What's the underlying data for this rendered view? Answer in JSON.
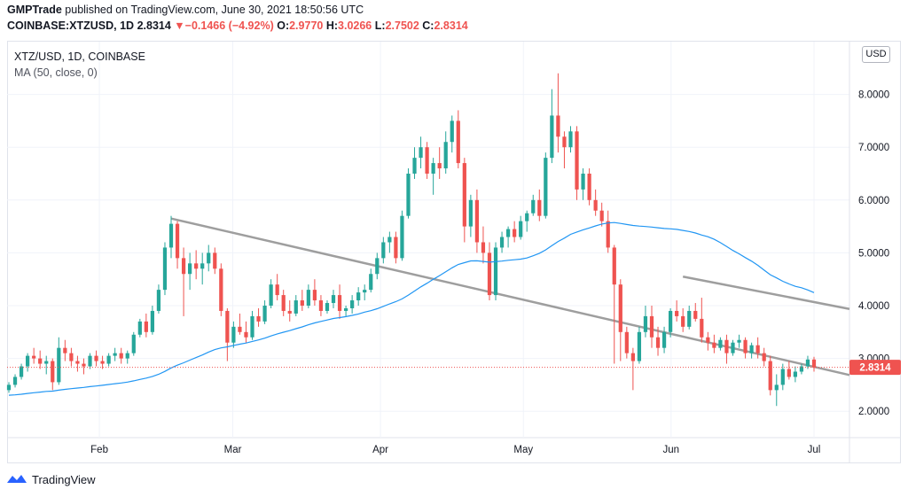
{
  "header": {
    "publisher": "GMPTrade",
    "published_text": " published on TradingView.com, June 30, 2021 18:50:56 UTC",
    "symbol_line": "COINBASE:XTZUSD, 1D",
    "last": "2.8314",
    "change": "−0.1466 (−4.92%)",
    "o_label": "O:",
    "o": "2.9770",
    "h_label": "H:",
    "h": "3.0266",
    "l_label": "L:",
    "l": "2.7502",
    "c_label": "C:",
    "c": "2.8314"
  },
  "legend": {
    "symbol": "XTZ/USD, 1D, COINBASE",
    "indicator": "MA (50, close, 0)"
  },
  "currency_badge": "USD",
  "price_label": "2.8314",
  "brand": "TradingView",
  "colors": {
    "up": "#26a69a",
    "down": "#ef5350",
    "ma": "#2196f3",
    "trendline": "#9e9e9e",
    "last_price": "#ef5350"
  },
  "chart_data": {
    "type": "candlestick",
    "title": "XTZ/USD, 1D, COINBASE",
    "y_ticks": [
      "2.0000",
      "3.0000",
      "4.0000",
      "5.0000",
      "6.0000",
      "7.0000",
      "8.0000"
    ],
    "x_ticks": [
      "Feb",
      "Mar",
      "Apr",
      "May",
      "Jun",
      "Jul"
    ],
    "ylim": [
      1.5,
      9.0
    ],
    "last_price": 2.8314,
    "grid": true,
    "ohlc": [
      [
        2.4,
        2.55,
        2.35,
        2.5
      ],
      [
        2.5,
        2.7,
        2.45,
        2.65
      ],
      [
        2.65,
        2.9,
        2.6,
        2.85
      ],
      [
        2.85,
        3.1,
        2.75,
        3.05
      ],
      [
        3.05,
        3.2,
        2.9,
        3.0
      ],
      [
        3.0,
        3.15,
        2.8,
        2.9
      ],
      [
        2.9,
        3.05,
        2.7,
        2.95
      ],
      [
        2.95,
        3.0,
        2.4,
        2.55
      ],
      [
        2.55,
        3.4,
        2.5,
        3.2
      ],
      [
        3.2,
        3.35,
        2.95,
        3.1
      ],
      [
        3.1,
        3.2,
        2.85,
        2.95
      ],
      [
        2.95,
        3.05,
        2.75,
        2.9
      ],
      [
        2.9,
        3.0,
        2.7,
        2.85
      ],
      [
        2.85,
        3.1,
        2.8,
        3.05
      ],
      [
        3.05,
        3.15,
        2.85,
        2.95
      ],
      [
        2.95,
        3.05,
        2.8,
        2.9
      ],
      [
        2.9,
        3.1,
        2.85,
        3.05
      ],
      [
        3.05,
        3.2,
        2.95,
        3.1
      ],
      [
        3.1,
        3.2,
        2.9,
        3.0
      ],
      [
        3.0,
        3.15,
        2.9,
        3.1
      ],
      [
        3.1,
        3.5,
        3.05,
        3.45
      ],
      [
        3.45,
        3.75,
        3.4,
        3.7
      ],
      [
        3.7,
        3.85,
        3.4,
        3.5
      ],
      [
        3.5,
        4.0,
        3.45,
        3.9
      ],
      [
        3.9,
        4.4,
        3.85,
        4.3
      ],
      [
        4.3,
        5.2,
        4.2,
        5.1
      ],
      [
        5.1,
        5.7,
        4.9,
        5.55
      ],
      [
        5.55,
        5.6,
        4.7,
        4.9
      ],
      [
        4.9,
        5.1,
        3.8,
        4.6
      ],
      [
        4.6,
        5.0,
        4.3,
        4.8
      ],
      [
        4.8,
        5.05,
        4.5,
        4.7
      ],
      [
        4.7,
        5.0,
        4.4,
        4.8
      ],
      [
        4.8,
        5.15,
        4.65,
        5.0
      ],
      [
        5.0,
        5.1,
        4.6,
        4.7
      ],
      [
        4.7,
        4.8,
        3.8,
        3.9
      ],
      [
        3.9,
        3.95,
        2.95,
        3.3
      ],
      [
        3.3,
        3.7,
        3.2,
        3.6
      ],
      [
        3.6,
        3.85,
        3.45,
        3.5
      ],
      [
        3.5,
        3.7,
        3.3,
        3.4
      ],
      [
        3.4,
        3.9,
        3.35,
        3.8
      ],
      [
        3.8,
        3.95,
        3.6,
        3.7
      ],
      [
        3.7,
        4.1,
        3.65,
        4.0
      ],
      [
        4.0,
        4.5,
        3.95,
        4.4
      ],
      [
        4.4,
        4.6,
        4.1,
        4.2
      ],
      [
        4.2,
        4.3,
        3.8,
        3.9
      ],
      [
        3.9,
        4.1,
        3.7,
        3.85
      ],
      [
        3.85,
        4.2,
        3.8,
        4.1
      ],
      [
        4.1,
        4.3,
        3.9,
        4.0
      ],
      [
        4.0,
        4.4,
        3.95,
        4.3
      ],
      [
        4.3,
        4.5,
        4.0,
        4.1
      ],
      [
        4.1,
        4.2,
        3.8,
        3.9
      ],
      [
        3.9,
        4.1,
        3.85,
        4.05
      ],
      [
        4.05,
        4.3,
        3.95,
        4.2
      ],
      [
        4.2,
        4.4,
        3.75,
        3.9
      ],
      [
        3.9,
        4.0,
        3.8,
        3.95
      ],
      [
        3.95,
        4.2,
        3.85,
        4.1
      ],
      [
        4.1,
        4.35,
        4.0,
        4.25
      ],
      [
        4.25,
        4.4,
        4.1,
        4.3
      ],
      [
        4.3,
        4.7,
        4.25,
        4.6
      ],
      [
        4.6,
        5.0,
        4.5,
        4.9
      ],
      [
        4.9,
        5.3,
        4.8,
        5.2
      ],
      [
        5.2,
        5.4,
        5.0,
        5.3
      ],
      [
        5.3,
        5.4,
        4.8,
        4.9
      ],
      [
        4.9,
        5.8,
        4.85,
        5.7
      ],
      [
        5.7,
        6.6,
        5.65,
        6.5
      ],
      [
        6.5,
        7.0,
        6.4,
        6.8
      ],
      [
        6.8,
        7.2,
        6.6,
        7.0
      ],
      [
        7.0,
        7.1,
        6.4,
        6.5
      ],
      [
        6.5,
        6.8,
        6.1,
        6.7
      ],
      [
        6.7,
        7.0,
        6.4,
        6.6
      ],
      [
        6.6,
        7.3,
        6.5,
        7.1
      ],
      [
        7.1,
        7.6,
        6.9,
        7.5
      ],
      [
        7.5,
        7.7,
        6.6,
        6.7
      ],
      [
        6.7,
        6.8,
        5.2,
        5.5
      ],
      [
        5.5,
        6.1,
        5.3,
        6.0
      ],
      [
        6.0,
        6.2,
        5.0,
        5.2
      ],
      [
        5.2,
        5.5,
        4.8,
        5.0
      ],
      [
        5.0,
        5.2,
        4.1,
        4.2
      ],
      [
        4.2,
        5.2,
        4.1,
        5.1
      ],
      [
        5.1,
        5.4,
        5.0,
        5.3
      ],
      [
        5.3,
        5.5,
        5.1,
        5.45
      ],
      [
        5.45,
        5.6,
        5.2,
        5.3
      ],
      [
        5.3,
        5.7,
        5.25,
        5.6
      ],
      [
        5.6,
        5.8,
        5.4,
        5.75
      ],
      [
        5.75,
        6.1,
        5.7,
        6.0
      ],
      [
        6.0,
        6.2,
        5.6,
        5.7
      ],
      [
        5.7,
        6.9,
        5.65,
        6.8
      ],
      [
        6.8,
        8.1,
        6.7,
        7.6
      ],
      [
        7.6,
        8.4,
        6.9,
        7.2
      ],
      [
        7.2,
        7.3,
        6.6,
        7.0
      ],
      [
        7.0,
        7.4,
        6.9,
        7.3
      ],
      [
        7.3,
        7.4,
        6.0,
        6.2
      ],
      [
        6.2,
        6.6,
        6.0,
        6.5
      ],
      [
        6.5,
        6.6,
        5.9,
        6.0
      ],
      [
        6.0,
        6.2,
        5.7,
        5.8
      ],
      [
        5.8,
        5.95,
        5.5,
        5.6
      ],
      [
        5.6,
        5.8,
        5.0,
        5.1
      ],
      [
        5.1,
        5.15,
        2.9,
        4.4
      ],
      [
        4.4,
        4.5,
        2.95,
        3.5
      ],
      [
        3.5,
        3.6,
        3.0,
        3.1
      ],
      [
        3.1,
        3.2,
        2.4,
        2.95
      ],
      [
        2.95,
        3.6,
        2.9,
        3.5
      ],
      [
        3.5,
        4.0,
        3.4,
        3.8
      ],
      [
        3.8,
        4.0,
        3.2,
        3.4
      ],
      [
        3.4,
        3.6,
        3.05,
        3.2
      ],
      [
        3.2,
        3.6,
        3.1,
        3.5
      ],
      [
        3.5,
        3.95,
        3.4,
        3.9
      ],
      [
        3.9,
        4.1,
        3.7,
        3.8
      ],
      [
        3.8,
        3.95,
        3.5,
        3.6
      ],
      [
        3.6,
        4.0,
        3.55,
        3.9
      ],
      [
        3.9,
        4.05,
        3.7,
        3.75
      ],
      [
        3.75,
        4.15,
        3.3,
        3.4
      ],
      [
        3.4,
        3.5,
        3.15,
        3.3
      ],
      [
        3.3,
        3.45,
        3.1,
        3.2
      ],
      [
        3.2,
        3.4,
        3.15,
        3.35
      ],
      [
        3.35,
        3.45,
        2.9,
        3.1
      ],
      [
        3.1,
        3.35,
        3.05,
        3.3
      ],
      [
        3.3,
        3.45,
        3.2,
        3.35
      ],
      [
        3.35,
        3.4,
        3.0,
        3.1
      ],
      [
        3.1,
        3.3,
        3.0,
        3.25
      ],
      [
        3.25,
        3.4,
        3.0,
        3.1
      ],
      [
        3.1,
        3.2,
        2.85,
        2.95
      ],
      [
        2.95,
        3.05,
        2.3,
        2.4
      ],
      [
        2.4,
        2.7,
        2.1,
        2.5
      ],
      [
        2.5,
        2.9,
        2.4,
        2.8
      ],
      [
        2.8,
        2.95,
        2.6,
        2.65
      ],
      [
        2.65,
        2.85,
        2.55,
        2.75
      ],
      [
        2.75,
        2.9,
        2.7,
        2.85
      ],
      [
        2.85,
        3.05,
        2.8,
        2.98
      ],
      [
        2.98,
        3.03,
        2.75,
        2.83
      ]
    ]
  }
}
